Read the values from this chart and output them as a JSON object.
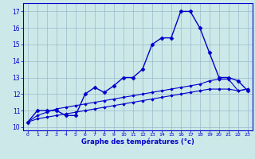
{
  "xlabel": "Graphe des températures (°c)",
  "hours": [
    0,
    1,
    2,
    3,
    4,
    5,
    6,
    7,
    8,
    9,
    10,
    11,
    12,
    13,
    14,
    15,
    16,
    17,
    18,
    19,
    20,
    21,
    22,
    23
  ],
  "temp_actual": [
    10.3,
    11.0,
    11.0,
    11.0,
    10.7,
    10.7,
    12.0,
    12.4,
    12.1,
    12.5,
    13.0,
    13.0,
    13.5,
    15.0,
    15.4,
    15.4,
    17.0,
    17.0,
    16.0,
    14.5,
    13.0,
    13.0,
    12.8,
    12.2
  ],
  "temp_upper": [
    10.3,
    10.7,
    10.9,
    11.1,
    11.2,
    11.3,
    11.4,
    11.5,
    11.6,
    11.7,
    11.8,
    11.9,
    12.0,
    12.1,
    12.2,
    12.3,
    12.4,
    12.5,
    12.6,
    12.8,
    12.9,
    12.9,
    12.2,
    12.3
  ],
  "temp_lower": [
    10.3,
    10.5,
    10.6,
    10.7,
    10.8,
    10.9,
    11.0,
    11.1,
    11.2,
    11.3,
    11.4,
    11.5,
    11.6,
    11.7,
    11.8,
    11.9,
    12.0,
    12.1,
    12.2,
    12.3,
    12.3,
    12.3,
    12.2,
    12.3
  ],
  "ylim": [
    9.8,
    17.5
  ],
  "xlim": [
    -0.5,
    23.5
  ],
  "yticks": [
    10,
    11,
    12,
    13,
    14,
    15,
    16,
    17
  ],
  "xticks": [
    0,
    1,
    2,
    3,
    4,
    5,
    6,
    7,
    8,
    9,
    10,
    11,
    12,
    13,
    14,
    15,
    16,
    17,
    18,
    19,
    20,
    21,
    22,
    23
  ],
  "line_color": "#0000cc",
  "bg_color": "#cce8e8",
  "grid_color": "#99bbcc",
  "marker_size": 2.5,
  "line_width": 1.0
}
